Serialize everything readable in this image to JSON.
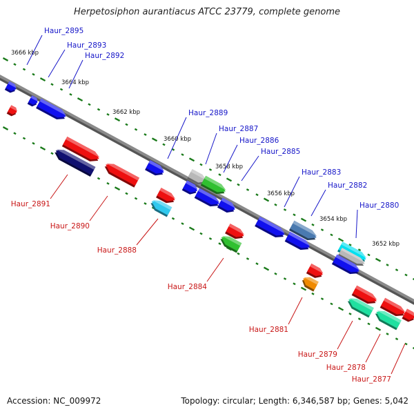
{
  "title": "Herpetosiphon aurantiacus ATCC 23779, complete genome",
  "footer": {
    "accession": "Accession: NC_009972",
    "summary": "Topology: circular; Length: 6,346,587 bp; Genes: 5,042"
  },
  "colors": {
    "backbone": "#8a8a8a",
    "tick": "#1a7a1a",
    "forward_label": "#1515c8",
    "reverse_label": "#c81515",
    "blue": "#1010ee",
    "navy": "#101070",
    "red": "#ee1010",
    "cyan": "#30c8ee",
    "green": "#30c030",
    "gray": "#b8b8b8",
    "steel": "#4a7ab0",
    "turquoise": "#00e0f0",
    "orange": "#f08a00",
    "seagreen": "#20e0a0"
  },
  "ruler": [
    {
      "label": "3666 kbp"
    },
    {
      "label": "3664 kbp"
    },
    {
      "label": "3662 kbp"
    },
    {
      "label": "3660 kbp"
    },
    {
      "label": "3658 kbp"
    },
    {
      "label": "3656 kbp"
    },
    {
      "label": "3654 kbp"
    },
    {
      "label": "3652 kbp"
    }
  ],
  "forward_labels": [
    "Haur_2895",
    "Haur_2893",
    "Haur_2892",
    "Haur_2889",
    "Haur_2887",
    "Haur_2886",
    "Haur_2885",
    "Haur_2883",
    "Haur_2882",
    "Haur_2880"
  ],
  "reverse_labels": [
    "Haur_2891",
    "Haur_2890",
    "Haur_2888",
    "Haur_2884",
    "Haur_2881",
    "Haur_2879",
    "Haur_2878",
    "Haur_2877"
  ]
}
